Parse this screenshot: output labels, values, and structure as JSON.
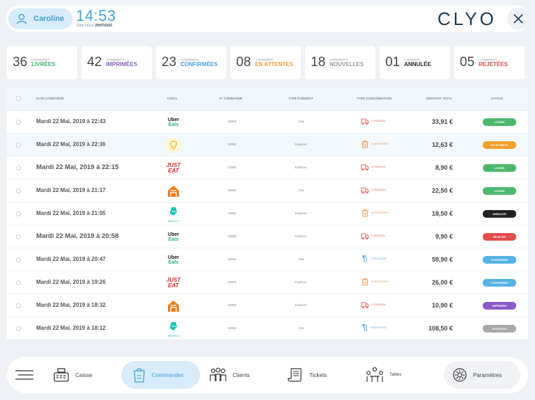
{
  "header": {
    "user_name": "Caroline",
    "time": "14:53",
    "date_prefix": "Date heure",
    "date": "29/07/2022",
    "logo": "CLYO"
  },
  "stats": [
    {
      "num": "36",
      "small": "Commandes",
      "big": "Livrées",
      "color": "#3ab36a"
    },
    {
      "num": "42",
      "small": "Commandes",
      "big": "Imprimées",
      "color": "#8a5cc4"
    },
    {
      "num": "23",
      "small": "Commandes",
      "big": "Confirmées",
      "color": "#3ea2db"
    },
    {
      "num": "08",
      "small": "Commandes",
      "big": "En attentes",
      "color": "#f2a12c"
    },
    {
      "num": "18",
      "small": "Commandes",
      "big": "Nouvelles",
      "color": "#9a9a9a"
    },
    {
      "num": "01",
      "small": "Commande",
      "big": "Annulée",
      "color": "#222222"
    },
    {
      "num": "05",
      "small": "Commandes",
      "big": "Rejetées",
      "color": "#e04e4e"
    }
  ],
  "columns": {
    "date": "Date commande",
    "canal": "Canal",
    "num": "N° commande",
    "pay": "Type paiement",
    "cons": "Type consommation",
    "amount": "Montant total",
    "status": "Status"
  },
  "rows": [
    {
      "date": "Mardi 22 Mai, 2019 à  22:43",
      "canal": "ubereats",
      "num": "12054",
      "pay": "Visa",
      "cons": "Livraison",
      "cons_icon": "delivery-icon",
      "amount": "33,91 €",
      "status": "Livrer",
      "status_color": "#4cb86c"
    },
    {
      "date": "Mardi 22 Mai, 2019 à  22:36",
      "canal": "clyo",
      "num": "12053",
      "pay": "Espèces",
      "cons": "A emporter",
      "cons_icon": "takeaway-icon",
      "amount": "12,63 €",
      "status": "En attente",
      "status_color": "#f2a12c"
    },
    {
      "date": "Mardi 22 Mai, 2019 à  22:15",
      "canal": "justeat",
      "num": "12052",
      "pay": "Espèces",
      "cons": "Livraison",
      "cons_icon": "delivery-icon",
      "amount": "8,90 €",
      "status": "Livrer",
      "status_color": "#4cb86c"
    },
    {
      "date": "Mardi 22 Mai, 2019 à  21:17",
      "canal": "house",
      "num": "12054",
      "pay": "Visa",
      "cons": "Livraison",
      "cons_icon": "delivery-icon",
      "amount": "22,50 €",
      "status": "Livrer",
      "status_color": "#4cb86c"
    },
    {
      "date": "Mardi 22 Mai, 2019 à  21:05",
      "canal": "deliveroo",
      "num": "12052",
      "pay": "Espèces",
      "cons": "A emporter",
      "cons_icon": "takeaway-icon",
      "amount": "18,50 €",
      "status": "Annuler",
      "status_color": "#222222"
    },
    {
      "date": "Mardi 22 Mai, 2019 à  20:58",
      "canal": "ubereats",
      "num": "12053",
      "pay": "Espèces",
      "cons": "Livraison",
      "cons_icon": "delivery-icon",
      "amount": "9,90 €",
      "status": "Rejeter",
      "status_color": "#e04e4e"
    },
    {
      "date": "Mardi 22 Mai, 2019 à  20:47",
      "canal": "ubereats",
      "num": "12054",
      "pay": "Visa",
      "cons": "Sur place",
      "cons_icon": "dine-in-icon",
      "amount": "59,90 €",
      "status": "Confirmer",
      "status_color": "#55b3e6"
    },
    {
      "date": "Mardi 22 Mai, 2019 à  19:26",
      "canal": "justeat",
      "num": "12053",
      "pay": "Espèces",
      "cons": "A emporter",
      "cons_icon": "takeaway-icon",
      "amount": "26,00 €",
      "status": "Confirmer",
      "status_color": "#55b3e6"
    },
    {
      "date": "Mardi 22 Mai, 2019 à  18:32",
      "canal": "house",
      "num": "12052",
      "pay": "Espèces",
      "cons": "Livraison",
      "cons_icon": "delivery-icon",
      "amount": "10,90 €",
      "status": "Imprimer",
      "status_color": "#8a5cc4"
    },
    {
      "date": "Mardi 22 Mai, 2019 à  18:12",
      "canal": "deliveroo",
      "num": "12054",
      "pay": "Visa",
      "cons": "Sur place",
      "cons_icon": "dine-in-icon",
      "amount": "108,50 €",
      "status": "Nouveau",
      "status_color": "#a8a8a8"
    }
  ],
  "canal_labels": {
    "uber_line1": "Uber",
    "uber_line2": "Eats",
    "just_line1": "JUST",
    "just_line2": "EAT",
    "deliveroo": "deliveroo"
  },
  "nav": {
    "caisse": "Caisse",
    "commandes": "Commandes",
    "clients": "Clients",
    "tickets": "Tickets",
    "tables": "Tables",
    "parametres": "Paramètres"
  }
}
